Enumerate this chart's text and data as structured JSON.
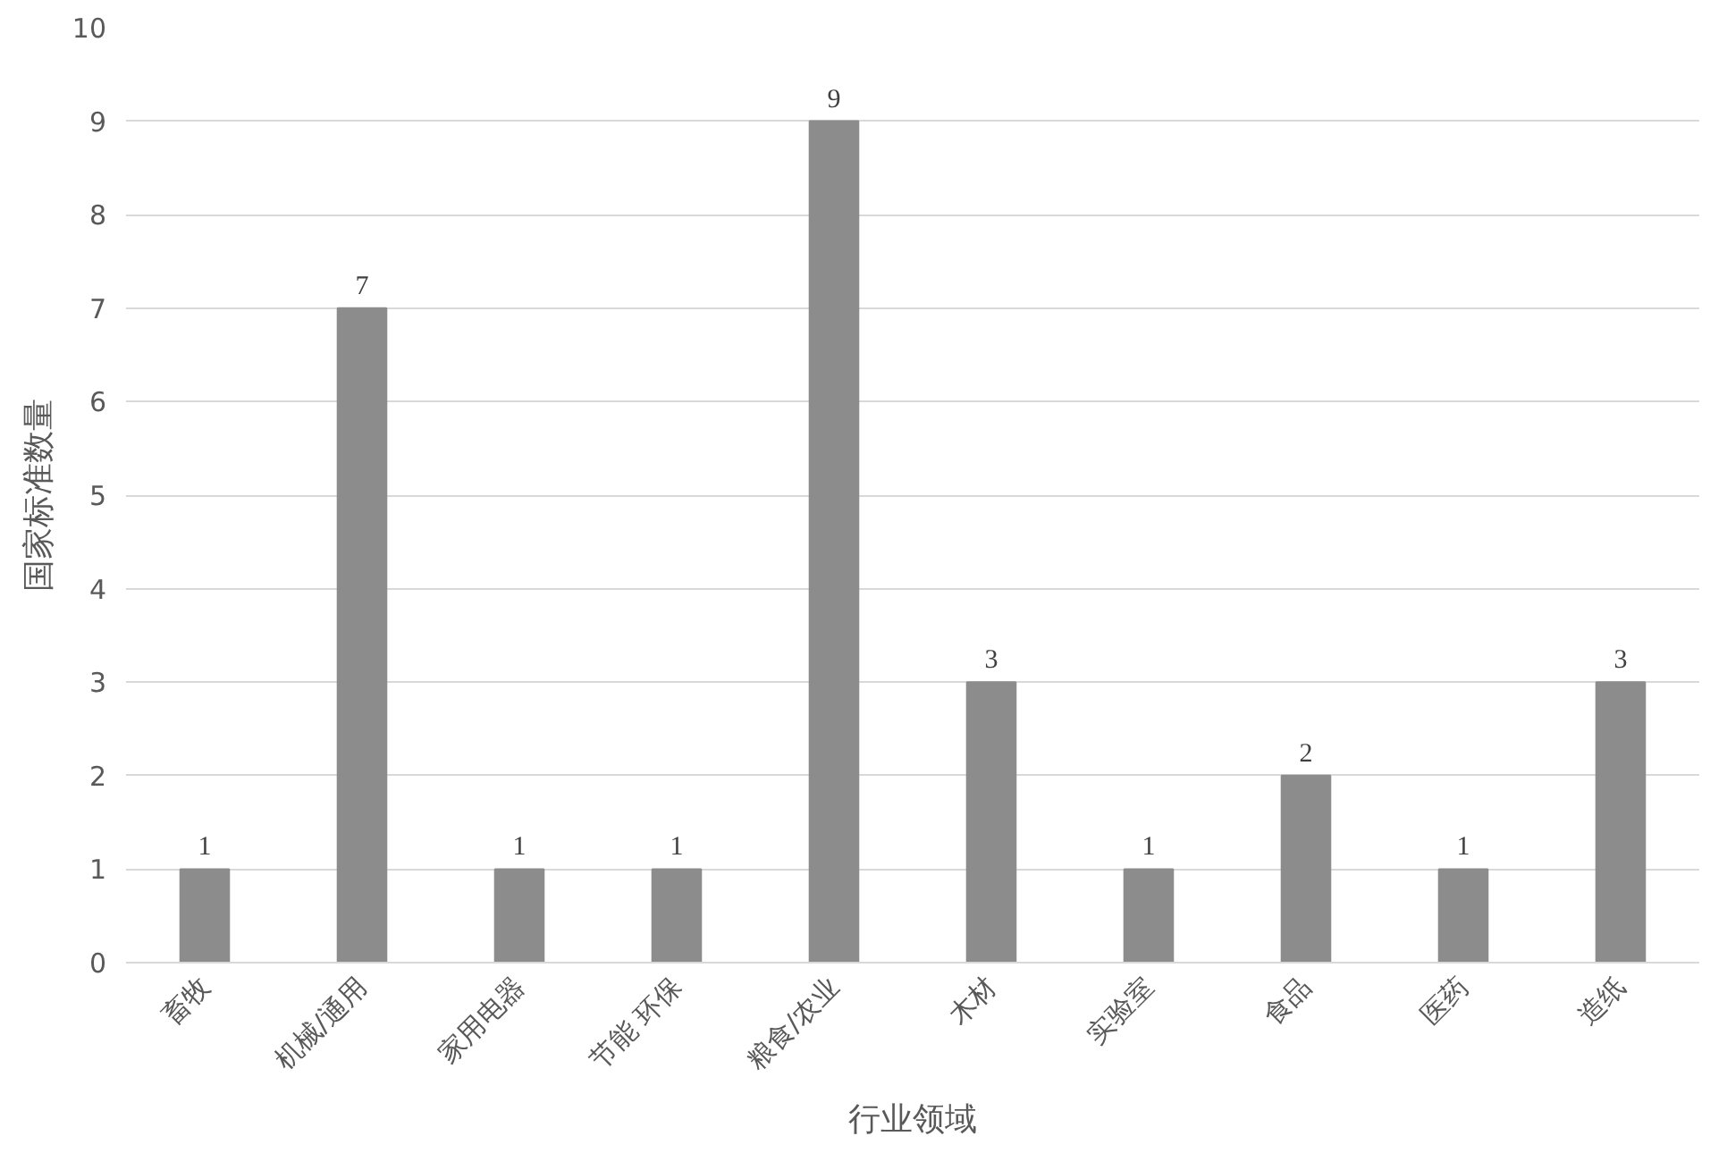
{
  "chart_data": {
    "type": "bar",
    "xlabel": "行业领域",
    "ylabel": "国家标准数量",
    "categories": [
      "畜牧",
      "机械/通用",
      "家用电器",
      "节能 环保",
      "粮食/农业",
      "木材",
      "实验室",
      "食品",
      "医药",
      "造纸"
    ],
    "values": [
      1,
      7,
      1,
      1,
      9,
      3,
      1,
      2,
      1,
      3
    ],
    "color": "#8c8c8c",
    "ylim": [
      0,
      10
    ],
    "yticks": [
      0,
      1,
      2,
      3,
      4,
      5,
      6,
      7,
      8,
      9,
      10
    ],
    "grid": "y",
    "data_labels": true
  }
}
